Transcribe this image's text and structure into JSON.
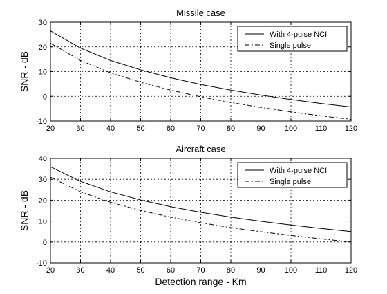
{
  "chart_data": [
    {
      "type": "line",
      "title": "Missile case",
      "xlabel": "",
      "ylabel": "SNR - dB",
      "xlim": [
        20,
        120
      ],
      "ylim": [
        -10,
        30
      ],
      "xticks": [
        20,
        30,
        40,
        50,
        60,
        70,
        80,
        90,
        100,
        110,
        120
      ],
      "yticks": [
        -10,
        0,
        10,
        20,
        30
      ],
      "grid": true,
      "legend_position": "top-right",
      "series": [
        {
          "name": "With 4-pulse NCI",
          "style": "solid",
          "x": [
            20,
            30,
            40,
            50,
            60,
            70,
            80,
            90,
            100,
            110,
            120
          ],
          "y": [
            26.5,
            19.5,
            14.5,
            10.7,
            7.5,
            4.8,
            2.5,
            0.5,
            -1.3,
            -2.9,
            -4.3
          ]
        },
        {
          "name": "Single pulse",
          "style": "dashdot",
          "x": [
            20,
            30,
            40,
            50,
            60,
            70,
            80,
            90,
            100,
            110,
            120
          ],
          "y": [
            21.5,
            14.5,
            9.5,
            5.7,
            2.5,
            -0.2,
            -2.5,
            -4.5,
            -6.3,
            -7.9,
            -9.3
          ]
        }
      ]
    },
    {
      "type": "line",
      "title": "Aircraft case",
      "xlabel": "Detection range - Km",
      "ylabel": "SNR - dB",
      "xlim": [
        20,
        120
      ],
      "ylim": [
        -10,
        40
      ],
      "xticks": [
        20,
        30,
        40,
        50,
        60,
        70,
        80,
        90,
        100,
        110,
        120
      ],
      "yticks": [
        -10,
        0,
        10,
        20,
        30,
        40
      ],
      "grid": true,
      "legend_position": "top-right",
      "series": [
        {
          "name": "With 4-pulse NCI",
          "style": "solid",
          "x": [
            20,
            30,
            40,
            50,
            60,
            70,
            80,
            90,
            100,
            110,
            120
          ],
          "y": [
            36,
            29,
            24,
            20.1,
            16.9,
            14.2,
            11.9,
            9.9,
            8.1,
            6.5,
            5
          ]
        },
        {
          "name": "Single pulse",
          "style": "dashdot",
          "x": [
            20,
            30,
            40,
            50,
            60,
            70,
            80,
            90,
            100,
            110,
            120
          ],
          "y": [
            31,
            24,
            19,
            15.1,
            11.9,
            9.2,
            6.9,
            4.9,
            3.1,
            1.5,
            0
          ]
        }
      ]
    }
  ]
}
